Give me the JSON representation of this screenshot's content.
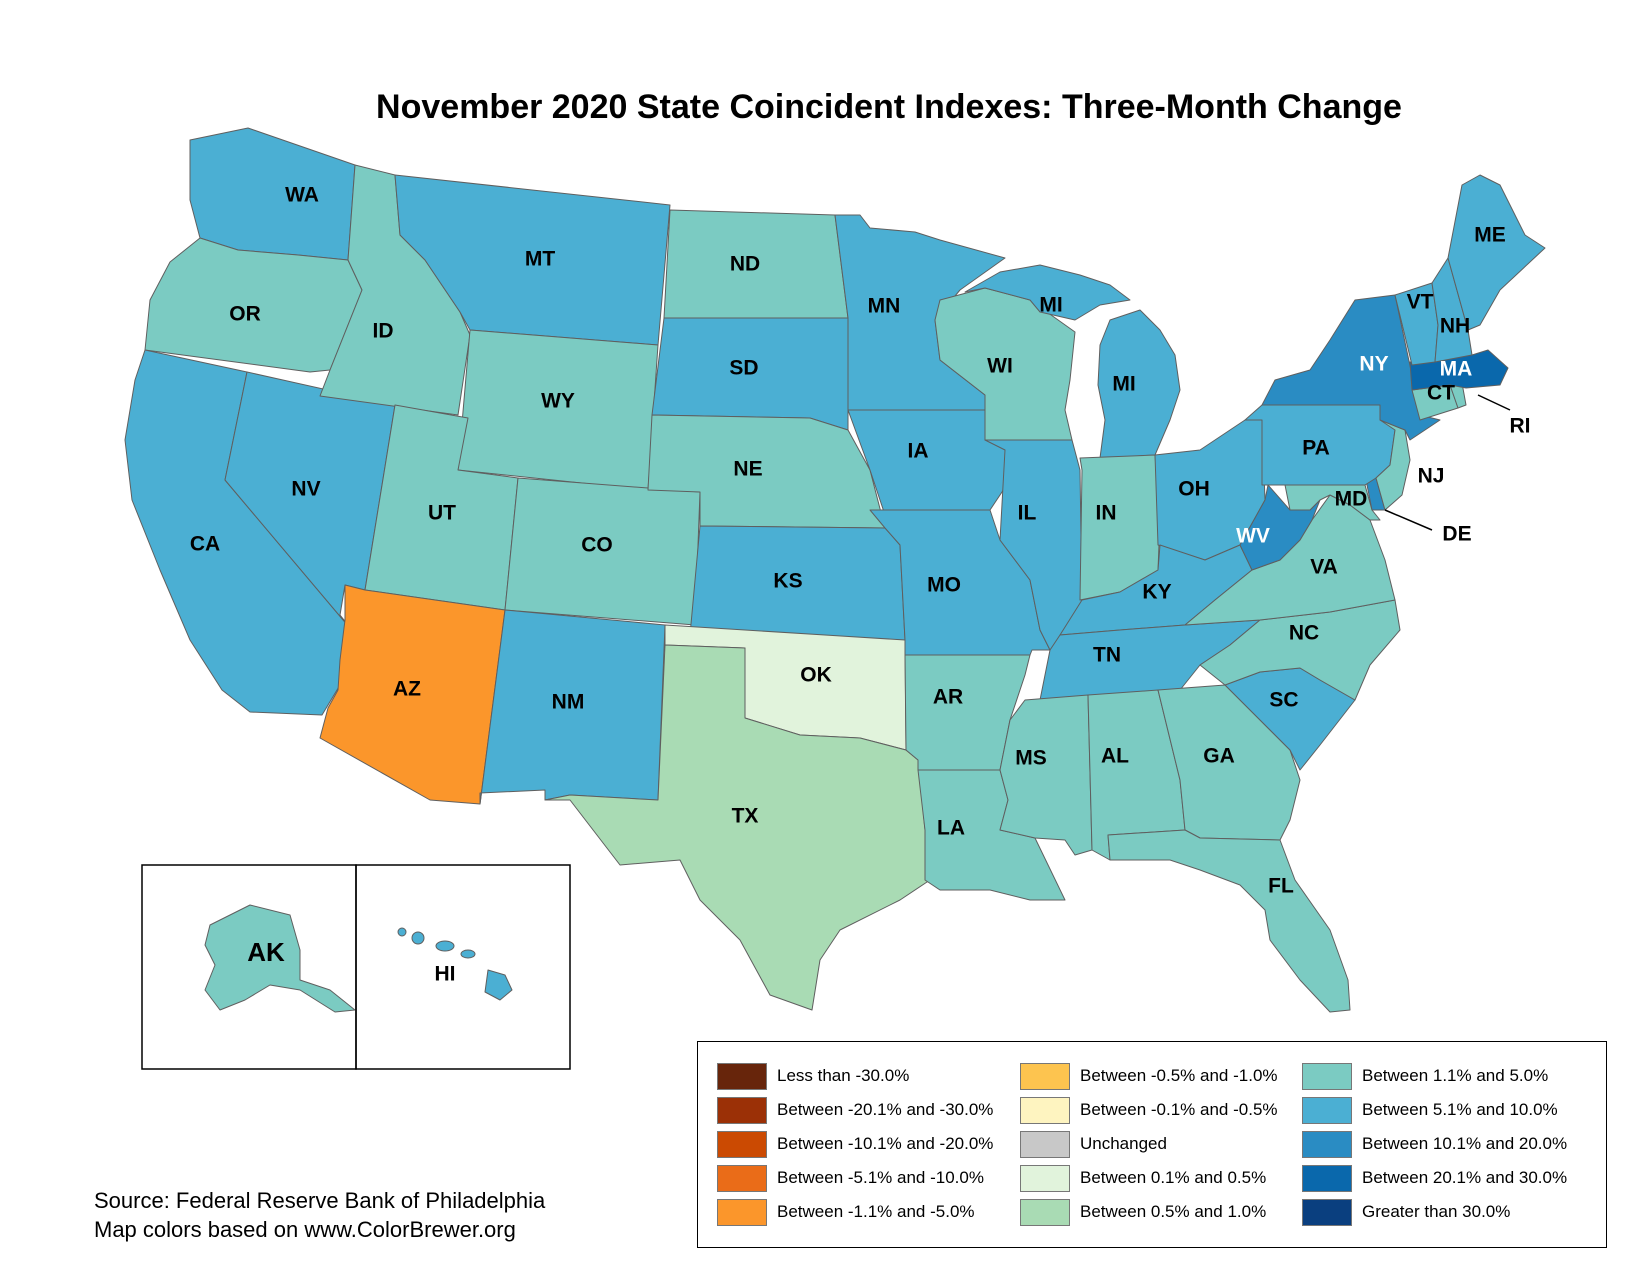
{
  "title": "November 2020 State Coincident Indexes: Three-Month Change",
  "colors": {
    "c_lt_neg30": "#67250b",
    "c_neg20_30": "#9b3006",
    "c_neg10_20": "#cb4a02",
    "c_neg5_10": "#ea6c18",
    "c_neg1_5": "#fb962b",
    "c_neg05_1": "#fdc44f",
    "c_neg01_05": "#fef4c0",
    "c_unch": "#c8c8c8",
    "c_01_05": "#e1f3dc",
    "c_05_1": "#a9dbb4",
    "c_1_5": "#7bcbc2",
    "c_5_10": "#4bafd3",
    "c_10_20": "#2a8cc3",
    "c_20_30": "#0a68ac",
    "c_gt30": "#0a3f7f"
  },
  "states": [
    {
      "abbr": "WA",
      "category": "c_5_10"
    },
    {
      "abbr": "OR",
      "category": "c_1_5"
    },
    {
      "abbr": "CA",
      "category": "c_5_10"
    },
    {
      "abbr": "NV",
      "category": "c_5_10"
    },
    {
      "abbr": "ID",
      "category": "c_1_5"
    },
    {
      "abbr": "MT",
      "category": "c_5_10"
    },
    {
      "abbr": "WY",
      "category": "c_1_5"
    },
    {
      "abbr": "UT",
      "category": "c_1_5"
    },
    {
      "abbr": "AZ",
      "category": "c_neg1_5"
    },
    {
      "abbr": "CO",
      "category": "c_1_5"
    },
    {
      "abbr": "NM",
      "category": "c_5_10"
    },
    {
      "abbr": "ND",
      "category": "c_1_5"
    },
    {
      "abbr": "SD",
      "category": "c_5_10"
    },
    {
      "abbr": "NE",
      "category": "c_1_5"
    },
    {
      "abbr": "KS",
      "category": "c_5_10"
    },
    {
      "abbr": "OK",
      "category": "c_01_05"
    },
    {
      "abbr": "TX",
      "category": "c_05_1"
    },
    {
      "abbr": "MN",
      "category": "c_5_10"
    },
    {
      "abbr": "IA",
      "category": "c_5_10"
    },
    {
      "abbr": "MO",
      "category": "c_5_10"
    },
    {
      "abbr": "AR",
      "category": "c_1_5"
    },
    {
      "abbr": "LA",
      "category": "c_1_5"
    },
    {
      "abbr": "WI",
      "category": "c_1_5"
    },
    {
      "abbr": "IL",
      "category": "c_5_10"
    },
    {
      "abbr": "MI",
      "category": "c_5_10"
    },
    {
      "abbr": "IN",
      "category": "c_1_5"
    },
    {
      "abbr": "OH",
      "category": "c_5_10"
    },
    {
      "abbr": "KY",
      "category": "c_5_10"
    },
    {
      "abbr": "TN",
      "category": "c_5_10"
    },
    {
      "abbr": "MS",
      "category": "c_1_5"
    },
    {
      "abbr": "AL",
      "category": "c_1_5"
    },
    {
      "abbr": "GA",
      "category": "c_1_5"
    },
    {
      "abbr": "FL",
      "category": "c_1_5"
    },
    {
      "abbr": "SC",
      "category": "c_5_10"
    },
    {
      "abbr": "NC",
      "category": "c_1_5"
    },
    {
      "abbr": "VA",
      "category": "c_1_5"
    },
    {
      "abbr": "WV",
      "category": "c_10_20"
    },
    {
      "abbr": "MD",
      "category": "c_1_5"
    },
    {
      "abbr": "DE",
      "category": "c_10_20"
    },
    {
      "abbr": "PA",
      "category": "c_5_10"
    },
    {
      "abbr": "NJ",
      "category": "c_1_5"
    },
    {
      "abbr": "NY",
      "category": "c_10_20"
    },
    {
      "abbr": "CT",
      "category": "c_1_5"
    },
    {
      "abbr": "RI",
      "category": "c_1_5"
    },
    {
      "abbr": "MA",
      "category": "c_20_30"
    },
    {
      "abbr": "VT",
      "category": "c_5_10"
    },
    {
      "abbr": "NH",
      "category": "c_5_10"
    },
    {
      "abbr": "ME",
      "category": "c_5_10"
    },
    {
      "abbr": "AK",
      "category": "c_1_5"
    },
    {
      "abbr": "HI",
      "category": "c_5_10"
    }
  ],
  "state_labels": [
    {
      "text": "WA"
    },
    {
      "text": "OR"
    },
    {
      "text": "CA"
    },
    {
      "text": "NV"
    },
    {
      "text": "ID"
    },
    {
      "text": "MT"
    },
    {
      "text": "WY"
    },
    {
      "text": "UT"
    },
    {
      "text": "AZ"
    },
    {
      "text": "CO"
    },
    {
      "text": "NM"
    },
    {
      "text": "ND"
    },
    {
      "text": "SD"
    },
    {
      "text": "NE"
    },
    {
      "text": "KS"
    },
    {
      "text": "OK"
    },
    {
      "text": "TX"
    },
    {
      "text": "MN"
    },
    {
      "text": "IA"
    },
    {
      "text": "MO"
    },
    {
      "text": "AR"
    },
    {
      "text": "LA"
    },
    {
      "text": "WI"
    },
    {
      "text": "IL"
    },
    {
      "text": "MI"
    },
    {
      "text": "MI"
    },
    {
      "text": "IN"
    },
    {
      "text": "OH"
    },
    {
      "text": "KY"
    },
    {
      "text": "TN"
    },
    {
      "text": "MS"
    },
    {
      "text": "AL"
    },
    {
      "text": "GA"
    },
    {
      "text": "FL"
    },
    {
      "text": "SC"
    },
    {
      "text": "NC"
    },
    {
      "text": "VA"
    },
    {
      "text": "WV"
    },
    {
      "text": "MD"
    },
    {
      "text": "DE"
    },
    {
      "text": "PA"
    },
    {
      "text": "NJ"
    },
    {
      "text": "NY"
    },
    {
      "text": "CT"
    },
    {
      "text": "RI"
    },
    {
      "text": "MA"
    },
    {
      "text": "VT"
    },
    {
      "text": "NH"
    },
    {
      "text": "ME"
    },
    {
      "text": "AK"
    },
    {
      "text": "HI"
    }
  ],
  "legend": [
    {
      "label": "Less than -30.0%",
      "color": "#67250b"
    },
    {
      "label": "Between -20.1% and -30.0%",
      "color": "#9b3006"
    },
    {
      "label": "Between -10.1% and -20.0%",
      "color": "#cb4a02"
    },
    {
      "label": "Between -5.1% and -10.0%",
      "color": "#ea6c18"
    },
    {
      "label": "Between -1.1% and -5.0%",
      "color": "#fb962b"
    },
    {
      "label": "Between -0.5% and -1.0%",
      "color": "#fdc44f"
    },
    {
      "label": "Between -0.1% and -0.5%",
      "color": "#fef4c0"
    },
    {
      "label": "Unchanged",
      "color": "#c8c8c8"
    },
    {
      "label": "Between 0.1% and 0.5%",
      "color": "#e1f3dc"
    },
    {
      "label": "Between 0.5% and 1.0%",
      "color": "#a9dbb4"
    },
    {
      "label": "Between 1.1% and 5.0%",
      "color": "#7bcbc2"
    },
    {
      "label": "Between 5.1% and 10.0%",
      "color": "#4bafd3"
    },
    {
      "label": "Between 10.1% and 20.0%",
      "color": "#2a8cc3"
    },
    {
      "label": "Between 20.1% and 30.0%",
      "color": "#0a68ac"
    },
    {
      "label": "Greater than 30.0%",
      "color": "#0a3f7f"
    }
  ],
  "source": {
    "line1": "Source: Federal Reserve Bank of Philadelphia",
    "line2": "Map colors based on www.ColorBrewer.org"
  }
}
